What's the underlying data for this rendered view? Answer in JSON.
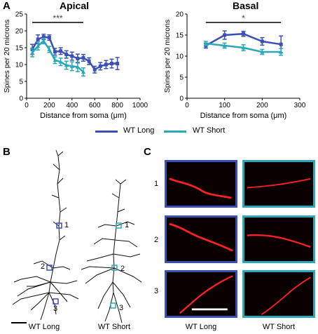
{
  "panels": {
    "a": "A",
    "b": "B",
    "c": "C"
  },
  "chart_data": [
    {
      "type": "line",
      "title": "Apical",
      "xlabel": "Distance from soma (μm)",
      "ylabel": "Spines per 20 microns",
      "xlim": [
        0,
        1000
      ],
      "ylim": [
        0,
        25
      ],
      "xticks": [
        0,
        200,
        400,
        600,
        800,
        1000
      ],
      "yticks": [
        0,
        5,
        10,
        15,
        20,
        25
      ],
      "significance": "***",
      "sig_range": [
        50,
        500
      ],
      "series": [
        {
          "name": "WT Long",
          "color": "#3a50b4",
          "x": [
            50,
            100,
            150,
            200,
            250,
            300,
            350,
            400,
            450,
            500,
            550,
            600,
            650,
            700,
            750,
            800
          ],
          "y": [
            14.5,
            17.5,
            18.2,
            18.0,
            13.8,
            14.0,
            13.0,
            12.5,
            11.8,
            12.0,
            11.0,
            8.5,
            9.5,
            10.0,
            10.3,
            10.3
          ],
          "err": [
            1.5,
            1.3,
            0.8,
            0.8,
            1.0,
            1.0,
            1.1,
            1.2,
            1.3,
            1.0,
            1.0,
            1.0,
            1.1,
            1.2,
            1.3,
            1.8
          ]
        },
        {
          "name": "WT Short",
          "color": "#2aa8b8",
          "x": [
            50,
            100,
            150,
            200,
            250,
            300,
            350,
            400,
            450,
            500
          ],
          "y": [
            13.5,
            15.5,
            17.0,
            14.5,
            11.3,
            10.8,
            9.8,
            9.5,
            9.3,
            7.8
          ],
          "err": [
            1.2,
            1.2,
            0.8,
            0.9,
            1.0,
            1.1,
            1.2,
            1.3,
            1.4,
            1.2
          ]
        }
      ]
    },
    {
      "type": "line",
      "title": "Basal",
      "xlabel": "Distance from soma (μm)",
      "ylabel": "Spines per 20 microns",
      "xlim": [
        0,
        300
      ],
      "ylim": [
        0,
        20
      ],
      "xticks": [
        0,
        100,
        200,
        300
      ],
      "yticks": [
        0,
        5,
        10,
        15,
        20
      ],
      "significance": "*",
      "sig_range": [
        50,
        250
      ],
      "series": [
        {
          "name": "WT Long",
          "color": "#3a50b4",
          "x": [
            50,
            100,
            150,
            200,
            250
          ],
          "y": [
            12.5,
            15.0,
            15.3,
            13.5,
            12.8
          ],
          "err": [
            0.6,
            1.0,
            0.6,
            0.9,
            2.0
          ]
        },
        {
          "name": "WT Short",
          "color": "#2aa8b8",
          "x": [
            50,
            100,
            150,
            200,
            250
          ],
          "y": [
            13.0,
            12.5,
            12.0,
            11.0,
            11.0
          ],
          "err": [
            0.5,
            0.6,
            0.7,
            0.6,
            0.8
          ]
        }
      ]
    }
  ],
  "legend": [
    {
      "label": "WT Long",
      "color": "#3a50b4"
    },
    {
      "label": "WT Short",
      "color": "#2aa8b8"
    }
  ],
  "panel_b": {
    "captions": [
      "WT Long",
      "WT Short"
    ],
    "markers": [
      "1",
      "2",
      "3"
    ]
  },
  "panel_c": {
    "rows": [
      "1",
      "2",
      "3"
    ],
    "captions": [
      "WT Long",
      "WT Short"
    ],
    "long_frame": "#3a50b4",
    "short_frame": "#2aa8b8"
  }
}
